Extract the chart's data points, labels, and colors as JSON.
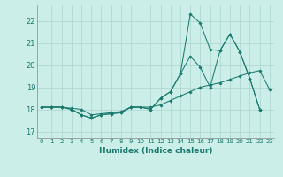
{
  "xlabel": "Humidex (Indice chaleur)",
  "bg_color": "#cceee8",
  "grid_color": "#aad4ce",
  "line_color": "#1a7a6e",
  "xlim": [
    -0.5,
    23.5
  ],
  "ylim": [
    16.7,
    22.7
  ],
  "yticks": [
    17,
    18,
    19,
    20,
    21,
    22
  ],
  "xticks": [
    0,
    1,
    2,
    3,
    4,
    5,
    6,
    7,
    8,
    9,
    10,
    11,
    12,
    13,
    14,
    15,
    16,
    17,
    18,
    19,
    20,
    21,
    22,
    23
  ],
  "series": [
    {
      "x": [
        0,
        1,
        2,
        3,
        4,
        5,
        6,
        7,
        8,
        9,
        10,
        11,
        12,
        13,
        14,
        15,
        16,
        17,
        18,
        19,
        20,
        21,
        22
      ],
      "y": [
        18.1,
        18.1,
        18.1,
        18.0,
        17.75,
        17.6,
        17.75,
        17.8,
        17.85,
        18.1,
        18.1,
        18.0,
        18.5,
        18.8,
        19.6,
        20.4,
        19.9,
        19.0,
        20.65,
        21.4,
        20.6,
        19.4,
        18.0
      ]
    },
    {
      "x": [
        0,
        1,
        2,
        3,
        4,
        5,
        6,
        7,
        8,
        9,
        10,
        11,
        12,
        13,
        14,
        15,
        16,
        17,
        18,
        19,
        20,
        21,
        22
      ],
      "y": [
        18.1,
        18.1,
        18.1,
        18.0,
        17.75,
        17.6,
        17.75,
        17.8,
        17.85,
        18.1,
        18.1,
        18.0,
        18.5,
        18.8,
        19.6,
        22.3,
        21.9,
        20.7,
        20.65,
        21.4,
        20.6,
        19.4,
        18.0
      ]
    },
    {
      "x": [
        0,
        1,
        2,
        3,
        4,
        5,
        6,
        7,
        8,
        9,
        10,
        11,
        12,
        13,
        14,
        15,
        16,
        17,
        18,
        19,
        20,
        21,
        22,
        23
      ],
      "y": [
        18.1,
        18.1,
        18.1,
        18.05,
        18.0,
        17.75,
        17.8,
        17.85,
        17.9,
        18.1,
        18.1,
        18.1,
        18.2,
        18.4,
        18.6,
        18.8,
        19.0,
        19.1,
        19.2,
        19.35,
        19.5,
        19.65,
        19.75,
        18.9
      ]
    }
  ]
}
